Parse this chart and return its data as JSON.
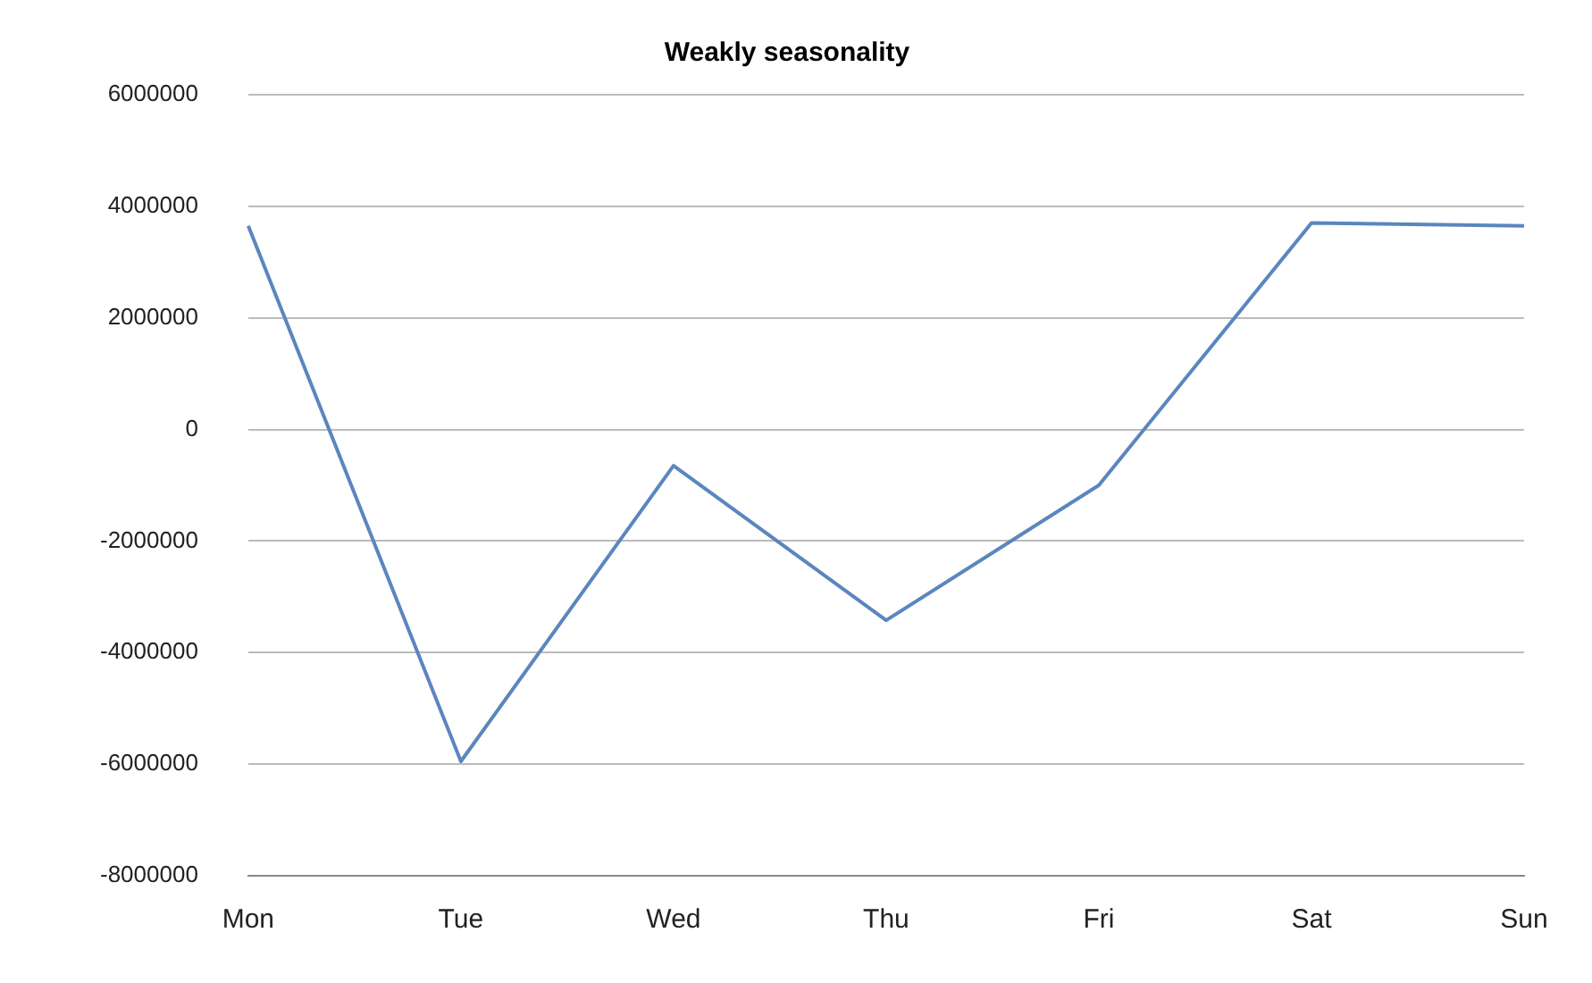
{
  "chart_data": {
    "type": "line",
    "title": "Weakly seasonality",
    "categories": [
      "Mon",
      "Tue",
      "Wed",
      "Thu",
      "Fri",
      "Sat",
      "Sun"
    ],
    "series": [
      {
        "color": "#5b86be",
        "values": [
          3650000,
          -5950000,
          -650000,
          -3420000,
          -1000000,
          3700000,
          3650000
        ]
      }
    ],
    "ylim": [
      -8000000,
      6000000
    ],
    "yticks": [
      -8000000,
      -6000000,
      -4000000,
      -2000000,
      0,
      2000000,
      4000000,
      6000000
    ],
    "grid": "y",
    "legend": false,
    "marker": "none"
  }
}
